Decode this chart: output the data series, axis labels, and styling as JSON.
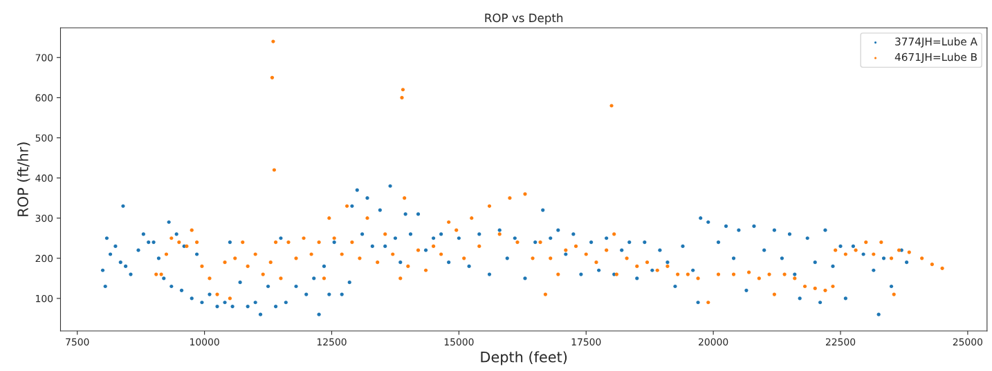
{
  "chart_data": {
    "type": "scatter",
    "title": "ROP vs Depth",
    "xlabel": "Depth (feet)",
    "ylabel": "ROP (ft/hr)",
    "xlim": [
      7170,
      25380
    ],
    "xticks": [
      7500,
      10000,
      12500,
      15000,
      17500,
      20000,
      22500,
      25000
    ],
    "ylim": [
      19,
      774
    ],
    "yticks": [
      100,
      200,
      300,
      400,
      500,
      600,
      700
    ],
    "grid": false,
    "legend": "top right",
    "marker": "circle",
    "series": [
      {
        "name": "3774JH=Lube A",
        "color": "#1f77b4",
        "x": [
          8000,
          8050,
          8080,
          8150,
          8250,
          8350,
          8400,
          8450,
          8550,
          8700,
          8800,
          8900,
          9000,
          9100,
          9200,
          9300,
          9350,
          9450,
          9550,
          9600,
          9750,
          9850,
          9950,
          10100,
          10250,
          10400,
          10500,
          10550,
          10700,
          10850,
          11000,
          11100,
          11250,
          11400,
          11500,
          11600,
          11800,
          12000,
          12150,
          12250,
          12350,
          12450,
          12550,
          12700,
          12850,
          12900,
          13000,
          13100,
          13200,
          13300,
          13450,
          13550,
          13650,
          13750,
          13850,
          13950,
          14050,
          14200,
          14350,
          14500,
          14650,
          14800,
          15000,
          15200,
          15400,
          15600,
          15800,
          15950,
          16100,
          16300,
          16500,
          16650,
          16800,
          16950,
          17100,
          17250,
          17400,
          17600,
          17750,
          17900,
          18050,
          18200,
          18350,
          18500,
          18650,
          18800,
          18950,
          19100,
          19250,
          19400,
          19600,
          19700,
          19750,
          19900,
          20100,
          20250,
          20400,
          20500,
          20650,
          20800,
          21000,
          21200,
          21350,
          21500,
          21600,
          21700,
          21850,
          22000,
          22100,
          22200,
          22350,
          22500,
          22600,
          22750,
          22950,
          23150,
          23250,
          23350,
          23500,
          23700,
          23800
        ],
        "values": [
          170,
          130,
          250,
          210,
          230,
          190,
          330,
          180,
          160,
          220,
          260,
          240,
          240,
          200,
          150,
          290,
          130,
          260,
          120,
          230,
          100,
          210,
          90,
          110,
          80,
          90,
          240,
          80,
          140,
          80,
          90,
          60,
          130,
          80,
          250,
          90,
          130,
          110,
          150,
          60,
          180,
          110,
          240,
          110,
          140,
          330,
          370,
          260,
          350,
          230,
          320,
          230,
          380,
          250,
          190,
          310,
          260,
          310,
          220,
          250,
          260,
          190,
          250,
          180,
          260,
          160,
          270,
          200,
          250,
          150,
          240,
          320,
          250,
          270,
          210,
          260,
          160,
          240,
          170,
          250,
          160,
          220,
          240,
          150,
          240,
          170,
          220,
          190,
          130,
          230,
          170,
          90,
          300,
          290,
          240,
          280,
          200,
          270,
          120,
          280,
          220,
          270,
          200,
          260,
          160,
          100,
          250,
          190,
          90,
          270,
          180,
          230,
          100,
          230,
          210,
          170,
          60,
          200,
          130,
          220,
          190
        ]
      },
      {
        "name": "4671JH=Lube B",
        "color": "#ff7f0e",
        "x": [
          9050,
          9150,
          9250,
          9350,
          9500,
          9650,
          9750,
          9850,
          9950,
          10100,
          10250,
          10400,
          10500,
          10600,
          10750,
          10850,
          11000,
          11150,
          11300,
          11330,
          11350,
          11370,
          11400,
          11500,
          11650,
          11800,
          11950,
          12100,
          12250,
          12350,
          12450,
          12550,
          12700,
          12800,
          12900,
          13050,
          13200,
          13400,
          13550,
          13700,
          13850,
          13880,
          13900,
          13930,
          14000,
          14200,
          14350,
          14500,
          14650,
          14800,
          14950,
          15100,
          15250,
          15400,
          15600,
          15800,
          16000,
          16150,
          16300,
          16450,
          16600,
          16700,
          16800,
          16950,
          17100,
          17300,
          17500,
          17700,
          17900,
          18000,
          18050,
          18100,
          18300,
          18500,
          18700,
          18900,
          19100,
          19300,
          19500,
          19700,
          19900,
          20100,
          20400,
          20700,
          20900,
          21100,
          21200,
          21400,
          21600,
          21800,
          22000,
          22200,
          22350,
          22400,
          22600,
          22800,
          23000,
          23150,
          23300,
          23500,
          23550,
          23650,
          23850,
          24100,
          24300,
          24500
        ],
        "values": [
          160,
          160,
          210,
          250,
          240,
          230,
          270,
          240,
          180,
          150,
          110,
          190,
          100,
          200,
          240,
          180,
          210,
          160,
          190,
          650,
          740,
          420,
          240,
          150,
          240,
          200,
          250,
          210,
          240,
          150,
          300,
          250,
          210,
          330,
          240,
          200,
          300,
          190,
          260,
          210,
          150,
          600,
          620,
          350,
          180,
          220,
          170,
          230,
          210,
          290,
          270,
          200,
          300,
          230,
          330,
          260,
          350,
          240,
          360,
          200,
          240,
          110,
          200,
          160,
          220,
          230,
          210,
          190,
          220,
          580,
          260,
          160,
          200,
          180,
          190,
          170,
          180,
          160,
          160,
          150,
          90,
          160,
          160,
          165,
          150,
          160,
          110,
          160,
          150,
          130,
          125,
          120,
          130,
          220,
          210,
          220,
          240,
          210,
          240,
          200,
          110,
          220,
          215,
          200,
          185,
          175
        ]
      }
    ]
  }
}
